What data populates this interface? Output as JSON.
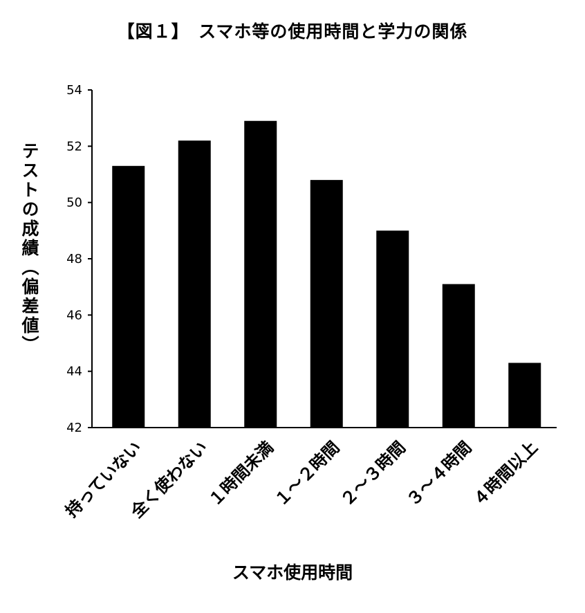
{
  "chart_data": {
    "type": "bar",
    "title": "【図１】　スマホ等の使用時間と学力の関係",
    "xlabel": "スマホ使用時間",
    "ylabel": "テストの成績（偏差値）",
    "categories": [
      "持っていない",
      "全く使わない",
      "１時間未満",
      "１～２時間",
      "２～３時間",
      "３～４時間",
      "４時間以上"
    ],
    "values": [
      51.3,
      52.2,
      52.9,
      50.8,
      49.0,
      47.1,
      44.3
    ],
    "ylim": [
      42,
      54
    ],
    "yticks": [
      "42",
      "44",
      "46",
      "48",
      "50",
      "52",
      "54"
    ],
    "bar_color": "#000000",
    "grid": false,
    "legend": "none"
  }
}
